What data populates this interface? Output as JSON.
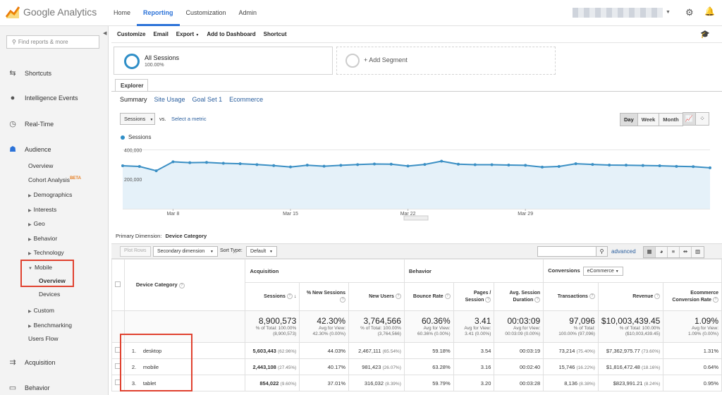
{
  "app": {
    "name": "Google Analytics"
  },
  "topnav": [
    {
      "label": "Home",
      "active": false
    },
    {
      "label": "Reporting",
      "active": true
    },
    {
      "label": "Customization",
      "active": false
    },
    {
      "label": "Admin",
      "active": false
    }
  ],
  "sidebar": {
    "search_placeholder": "Find reports & more",
    "shortcuts": "Shortcuts",
    "intelligence": "Intelligence Events",
    "realtime": "Real-Time",
    "audience": "Audience",
    "overview": "Overview",
    "cohort": "Cohort Analysis",
    "beta": "BETA",
    "demographics": "Demographics",
    "interests": "Interests",
    "geo": "Geo",
    "behavior_sub": "Behavior",
    "technology": "Technology",
    "mobile": "Mobile",
    "mobile_overview": "Overview",
    "devices": "Devices",
    "custom": "Custom",
    "benchmarking": "Benchmarking",
    "users_flow": "Users Flow",
    "acquisition": "Acquisition",
    "behavior": "Behavior"
  },
  "toolbar": {
    "customize": "Customize",
    "email": "Email",
    "export": "Export",
    "add_dashboard": "Add to Dashboard",
    "shortcut": "Shortcut"
  },
  "segments": {
    "all_title": "All Sessions",
    "all_pct": "100.00%",
    "add": "+ Add Segment"
  },
  "explorer": {
    "tab": "Explorer",
    "subtabs": [
      "Summary",
      "Site Usage",
      "Goal Set 1",
      "Ecommerce"
    ],
    "metric": "Sessions",
    "vs": "vs.",
    "select_metric": "Select a metric",
    "day_buttons": [
      "Day",
      "Week",
      "Month"
    ],
    "active_day": "Day"
  },
  "chart_data": {
    "type": "area",
    "series": [
      {
        "name": "Sessions",
        "values": [
          292000,
          287000,
          258000,
          319000,
          313000,
          315000,
          309000,
          306000,
          300000,
          293000,
          284000,
          296000,
          289000,
          295000,
          300000,
          304000,
          303000,
          290000,
          301000,
          323000,
          303000,
          299000,
          299000,
          297000,
          295000,
          283000,
          287000,
          306000,
          301000,
          297000,
          296000,
          294000,
          292000,
          288000,
          286000,
          278000
        ]
      }
    ],
    "y_ticks": [
      "400,000",
      "200,000"
    ],
    "ylim": [
      0,
      450000
    ],
    "x_labels": [
      {
        "label": "Mar 8",
        "index": 3
      },
      {
        "label": "Mar 15",
        "index": 10
      },
      {
        "label": "Mar 22",
        "index": 17
      },
      {
        "label": "Mar 29",
        "index": 24
      }
    ],
    "color": "#3a8fc4",
    "fill": "#e5f1f9",
    "grid": true
  },
  "primary_dimension": {
    "label": "Primary Dimension:",
    "value": "Device Category"
  },
  "table_controls": {
    "plot_rows": "Plot Rows",
    "secondary": "Secondary dimension",
    "sort_label": "Sort Type:",
    "sort_value": "Default",
    "advanced": "advanced"
  },
  "table": {
    "groups": {
      "acquisition": "Acquisition",
      "behavior": "Behavior",
      "conversions": "Conversions",
      "ecommerce": "eCommerce"
    },
    "dimension_header": "Device Category",
    "headers": [
      "Sessions",
      "% New Sessions",
      "New Users",
      "Bounce Rate",
      "Pages / Session",
      "Avg. Session Duration",
      "Transactions",
      "Revenue",
      "Ecommerce Conversion Rate"
    ],
    "totals": [
      {
        "value": "8,900,573",
        "sub1": "% of Total: 100.00%",
        "sub2": "(8,900,573)"
      },
      {
        "value": "42.30%",
        "sub1": "Avg for View:",
        "sub2": "42.30% (0.00%)"
      },
      {
        "value": "3,764,566",
        "sub1": "% of Total: 100.00%",
        "sub2": "(3,764,566)"
      },
      {
        "value": "60.36%",
        "sub1": "Avg for View:",
        "sub2": "60.36% (0.00%)"
      },
      {
        "value": "3.41",
        "sub1": "Avg for View:",
        "sub2": "3.41 (0.00%)"
      },
      {
        "value": "00:03:09",
        "sub1": "Avg for View:",
        "sub2": "00:03:09 (0.00%)"
      },
      {
        "value": "97,096",
        "sub1": "% of Total:",
        "sub2": "100.00% (97,096)"
      },
      {
        "value": "$10,003,439.45",
        "sub1": "% of Total: 100.00%",
        "sub2": "($10,003,439.45)"
      },
      {
        "value": "1.09%",
        "sub1": "Avg for View:",
        "sub2": "1.09% (0.00%)"
      }
    ],
    "rows": [
      {
        "idx": "1.",
        "name": "desktop",
        "sessions": "5,603,443",
        "sessions_pct": "(62.96%)",
        "new_sessions": "44.03%",
        "new_users": "2,467,111",
        "new_users_pct": "(65.54%)",
        "bounce": "59.18%",
        "pages": "3.54",
        "duration": "00:03:19",
        "transactions": "73,214",
        "transactions_pct": "(75.40%)",
        "revenue": "$7,362,975.77",
        "revenue_pct": "(73.60%)",
        "conv": "1.31%"
      },
      {
        "idx": "2.",
        "name": "mobile",
        "sessions": "2,443,108",
        "sessions_pct": "(27.45%)",
        "new_sessions": "40.17%",
        "new_users": "981,423",
        "new_users_pct": "(26.07%)",
        "bounce": "63.28%",
        "pages": "3.16",
        "duration": "00:02:40",
        "transactions": "15,746",
        "transactions_pct": "(16.22%)",
        "revenue": "$1,816,472.48",
        "revenue_pct": "(18.16%)",
        "conv": "0.64%"
      },
      {
        "idx": "3.",
        "name": "tablet",
        "sessions": "854,022",
        "sessions_pct": "(9.60%)",
        "new_sessions": "37.01%",
        "new_users": "316,032",
        "new_users_pct": "(8.39%)",
        "bounce": "59.79%",
        "pages": "3.20",
        "duration": "00:03:28",
        "transactions": "8,136",
        "transactions_pct": "(8.38%)",
        "revenue": "$823,991.21",
        "revenue_pct": "(8.24%)",
        "conv": "0.95%"
      }
    ]
  }
}
